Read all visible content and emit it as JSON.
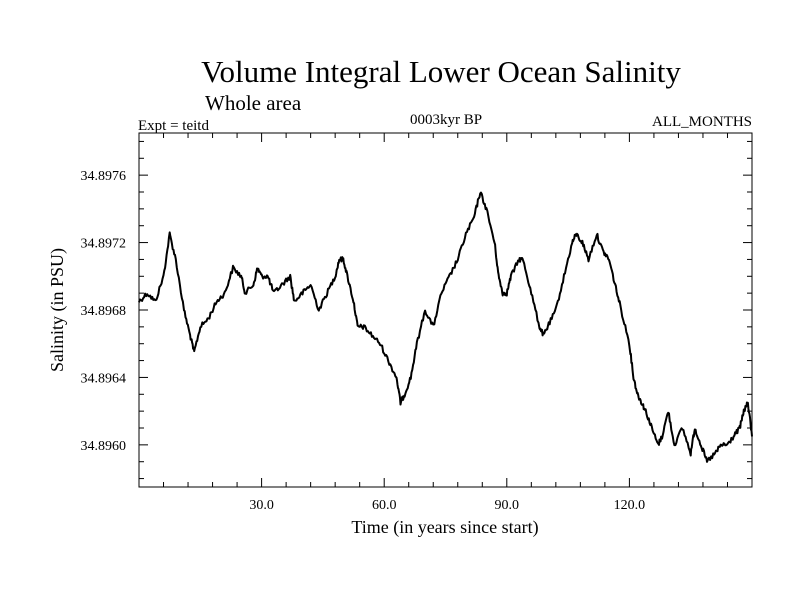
{
  "chart_data": {
    "type": "line",
    "title": "Volume Integral Lower Ocean Salinity",
    "subtitle": "Whole area",
    "expt_label": "Expt = teitd",
    "period_label": "0003kyr BP",
    "months_label": "ALL_MONTHS",
    "xlabel": "Time (in years since start)",
    "ylabel": "Salinity (in PSU)",
    "xlim": [
      0,
      150
    ],
    "ylim": [
      34.89575,
      34.89785
    ],
    "x_ticks": [
      30,
      60,
      90,
      120
    ],
    "x_tick_labels": [
      "30.0",
      "60.0",
      "90.0",
      "120.0"
    ],
    "y_ticks": [
      34.896,
      34.8964,
      34.8968,
      34.8972,
      34.8976
    ],
    "y_tick_labels": [
      "34.8960",
      "34.8964",
      "34.8968",
      "34.8972",
      "34.8976"
    ],
    "line_color": "#000000",
    "series": [
      {
        "name": "Salinity",
        "x": [
          0,
          2,
          4,
          6,
          7.5,
          9,
          11,
          12.5,
          13.5,
          15,
          17,
          19,
          21,
          23,
          25,
          26,
          28,
          29,
          30,
          31.5,
          33,
          35,
          37,
          38,
          40,
          42,
          44,
          46,
          48,
          49,
          50,
          51,
          52.5,
          53.5,
          55,
          57,
          59,
          61,
          63,
          64,
          65,
          66.5,
          68,
          70,
          72,
          74,
          76,
          78,
          80,
          82,
          83.5,
          85,
          87,
          88,
          89,
          90,
          91,
          93,
          94,
          96,
          98,
          99,
          100,
          102,
          104,
          106,
          107,
          108.5,
          110,
          112,
          113.5,
          115,
          116.5,
          118,
          120,
          121,
          122,
          123,
          124,
          125.5,
          127,
          128,
          129.5,
          131,
          133,
          135,
          136,
          137.5,
          139,
          141,
          142.5,
          144,
          145.5,
          147,
          148,
          149,
          150
        ],
        "y": [
          34.89685,
          34.8969,
          34.89685,
          34.897,
          34.89725,
          34.8971,
          34.8968,
          34.89665,
          34.89655,
          34.8967,
          34.89675,
          34.89685,
          34.8969,
          34.89705,
          34.897,
          34.8969,
          34.89695,
          34.89705,
          34.897,
          34.897,
          34.8969,
          34.89695,
          34.897,
          34.89685,
          34.8969,
          34.89695,
          34.8968,
          34.8969,
          34.897,
          34.8971,
          34.8971,
          34.897,
          34.89685,
          34.8967,
          34.8967,
          34.89665,
          34.8966,
          34.8965,
          34.8964,
          34.89625,
          34.8963,
          34.8964,
          34.8966,
          34.8968,
          34.8967,
          34.8969,
          34.897,
          34.8971,
          34.89725,
          34.89735,
          34.8975,
          34.8974,
          34.8972,
          34.897,
          34.8969,
          34.8969,
          34.897,
          34.8971,
          34.8971,
          34.8969,
          34.8967,
          34.89665,
          34.8967,
          34.8968,
          34.897,
          34.8972,
          34.89725,
          34.8972,
          34.8971,
          34.89725,
          34.89715,
          34.8971,
          34.89695,
          34.8968,
          34.8966,
          34.8964,
          34.8963,
          34.89625,
          34.8962,
          34.8961,
          34.896,
          34.89605,
          34.8962,
          34.896,
          34.8961,
          34.89595,
          34.8961,
          34.896,
          34.8959,
          34.89595,
          34.896,
          34.896,
          34.89605,
          34.8961,
          34.8962,
          34.89625,
          34.89605
        ]
      }
    ]
  }
}
